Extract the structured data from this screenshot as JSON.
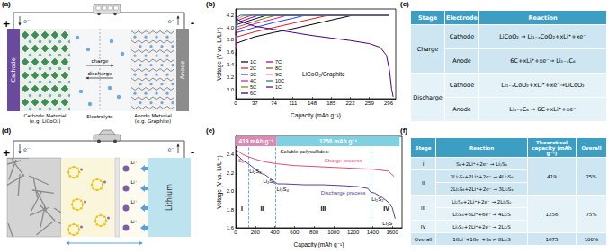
{
  "chart_data": [
    {
      "title": "(b)",
      "type": "line",
      "x_label": "Capacity (mAh g⁻¹)",
      "y_label": "Voltage (V vs. Li/Li⁺)",
      "annotations": [
        "LiCoO₂/Graphite"
      ],
      "xlim": [
        0,
        310
      ],
      "xticks": [
        0,
        37,
        74,
        111,
        148,
        185,
        222,
        259,
        296
      ],
      "ylim": [
        2.85,
        4.3
      ],
      "yticks": [
        {
          "value": 3,
          "label": "3.0"
        },
        3.2,
        3.4,
        3.6,
        3.8,
        {
          "value": 4,
          "label": "4.0"
        },
        4.2
      ],
      "grid": false,
      "legend": "lower left",
      "series": [
        {
          "name": "1C",
          "color": "#000000",
          "x": [
            0,
            3,
            37,
            74,
            111,
            148,
            185,
            222,
            235,
            296
          ],
          "values": [
            3.55,
            3.75,
            3.85,
            3.92,
            3.98,
            4.05,
            4.12,
            4.19,
            4.2,
            4.2
          ]
        },
        {
          "name": "2C",
          "color": "#e41a1c",
          "x": [
            0,
            3,
            37,
            74,
            111,
            148,
            180,
            296
          ],
          "values": [
            3.65,
            3.85,
            3.93,
            4.0,
            4.07,
            4.14,
            4.2,
            4.2
          ]
        },
        {
          "name": "3C",
          "color": "#1f3fff",
          "x": [
            0,
            3,
            37,
            74,
            111,
            135,
            296
          ],
          "values": [
            3.72,
            3.92,
            4.0,
            4.08,
            4.15,
            4.2,
            4.2
          ]
        },
        {
          "name": "4C",
          "color": "#d02090",
          "x": [
            0,
            3,
            37,
            74,
            100,
            296
          ],
          "values": [
            3.78,
            3.97,
            4.06,
            4.14,
            4.2,
            4.2
          ]
        },
        {
          "name": "5C",
          "color": "#808000",
          "x": [
            0,
            3,
            37,
            60,
            80,
            296
          ],
          "values": [
            3.83,
            4.01,
            4.1,
            4.16,
            4.2,
            4.2
          ]
        },
        {
          "name": "6C",
          "color": "#000080",
          "x": [
            0,
            3,
            37,
            60,
            296
          ],
          "values": [
            3.87,
            4.05,
            4.14,
            4.2,
            4.2
          ]
        },
        {
          "name": "7C",
          "color": "#8b008b",
          "x": [
            0,
            3,
            30,
            45,
            296
          ],
          "values": [
            3.9,
            4.08,
            4.16,
            4.2,
            4.2
          ]
        },
        {
          "name": "8C",
          "color": "#8b4513",
          "x": [
            0,
            3,
            20,
            32,
            296
          ],
          "values": [
            3.93,
            4.11,
            4.17,
            4.2,
            4.2
          ]
        },
        {
          "name": "9C",
          "color": "#ff69b4",
          "x": [
            0,
            3,
            15,
            22,
            296
          ],
          "values": [
            3.95,
            4.14,
            4.19,
            4.2,
            4.2
          ]
        },
        {
          "name": "10C",
          "color": "#008080",
          "x": [
            0,
            3,
            10,
            296
          ],
          "values": [
            3.97,
            4.17,
            4.2,
            4.2
          ]
        },
        {
          "name": "1C",
          "color": "#4b0082",
          "x": [
            0,
            10,
            37,
            74,
            111,
            148,
            185,
            222,
            259,
            280,
            292,
            298,
            302,
            305
          ],
          "values": [
            4.15,
            4.1,
            4.02,
            3.97,
            3.92,
            3.87,
            3.83,
            3.79,
            3.74,
            3.68,
            3.55,
            3.3,
            3.0,
            2.88
          ]
        }
      ]
    },
    {
      "title": "(e)",
      "type": "line",
      "x_label": "Capacity (mAh g⁻¹)",
      "y_label": "Voltage (V vs. Li/Li⁺)",
      "annotations": [
        "Soluble polysulfides:"
      ],
      "xlim": [
        0,
        1700
      ],
      "xticks": [
        0,
        200,
        400,
        600,
        800,
        1000,
        1200,
        1400,
        1600
      ],
      "ylim": [
        1.6,
        2.6
      ],
      "yticks": [
        1.6,
        1.8,
        {
          "value": 2,
          "label": "2.0"
        },
        2.2,
        2.4
      ],
      "grid": false,
      "capacity_bands": [
        {
          "from": 0,
          "to": 419,
          "label": "419 mAh g⁻¹",
          "color": "#d98cb3"
        },
        {
          "from": 419,
          "to": 1675,
          "label": "1256 mAh g⁻¹",
          "color": "#7fd0e0"
        }
      ],
      "stage_boundaries": [
        130,
        410,
        1380
      ],
      "stages": [
        "I",
        "II",
        "III",
        "IV"
      ],
      "species": [
        "S₈",
        "Li₂S₈",
        "Li₂S₆",
        "Li₂S₄",
        "Li₂S₂",
        "Li₂S"
      ],
      "series": [
        {
          "name": "Discharge process",
          "color": "#5e3c99",
          "x": [
            0,
            30,
            80,
            130,
            200,
            270,
            300,
            400,
            430,
            500,
            700,
            900,
            1100,
            1250,
            1350,
            1380,
            1420,
            1500,
            1560,
            1600,
            1630
          ],
          "values": [
            2.42,
            2.38,
            2.33,
            2.3,
            2.24,
            2.19,
            2.18,
            2.1,
            2.08,
            2.08,
            2.07,
            2.07,
            2.06,
            2.05,
            2.03,
            1.99,
            1.98,
            1.93,
            1.88,
            1.82,
            1.7
          ]
        },
        {
          "name": "Charge process",
          "color": "#e5487f",
          "x": [
            1620,
            1560,
            1400,
            1200,
            1000,
            800,
            600,
            420,
            300,
            200,
            120,
            60,
            20,
            0
          ],
          "values": [
            2.16,
            2.22,
            2.24,
            2.25,
            2.26,
            2.27,
            2.28,
            2.3,
            2.32,
            2.35,
            2.38,
            2.41,
            2.44,
            2.47
          ]
        }
      ]
    }
  ],
  "diagrams": [
    {
      "title": "(a)",
      "labels": {
        "positive": "+",
        "negative": "-",
        "electron": "e⁻",
        "cathode": "Cathode",
        "anode": "Anode",
        "charge": "charge",
        "discharge": "discharge",
        "cathode_material": [
          "Cathode Material",
          "(e.g. LiCoO₂)"
        ],
        "electrolyte": "Electrolyte",
        "anode_material": [
          "Anode Material",
          "(e.g. Graphite)"
        ]
      }
    },
    {
      "title": "(d)",
      "labels": {
        "positive": "+",
        "negative": "-",
        "electron": "e⁻",
        "ion": "Li⁺",
        "anode": "Lithium"
      }
    }
  ],
  "tables": [
    {
      "title": "(c)",
      "header": [
        "Stage",
        "Electrode",
        "Reaction"
      ],
      "groups": [
        {
          "stage": "Charge",
          "rows": [
            [
              "Cathode",
              "LiCoO₂ → Li₁₋ₓCoO₂+xLi⁺+xe⁻"
            ],
            [
              "Anode",
              "6C+xLi⁺+xe⁻→ Li₁₋ₓC₆"
            ]
          ]
        },
        {
          "stage": "Discharge",
          "rows": [
            [
              "Cathode",
              "Li₁₋ₓCoO₂+xLi⁺+xe⁻→LiCoO₂"
            ],
            [
              "Anode",
              "Li₁₋ₓC₆ → 6C+xLi⁺+xe⁻"
            ]
          ]
        }
      ]
    },
    {
      "title": "(f)",
      "header": [
        "Stage",
        "Reaction",
        "Theoretical capacity (mAh g⁻¹)",
        "Overall"
      ],
      "groups": [
        {
          "stages": [
            {
              "stage": "I",
              "reactions": [
                "S₈+2Li⁺+2e⁻ → Li₂S₈"
              ]
            },
            {
              "stage": "II",
              "reactions": [
                "3Li₂S₈+2Li⁺+2e⁻ → 4Li₂S₆",
                "2Li₂S₆+2Li⁺+2e⁻ → 3Li₂S₄"
              ]
            }
          ],
          "capacity": 419,
          "overall": "25%"
        },
        {
          "stages": [
            {
              "stage": "III",
              "reactions": [
                "Li₂S₄+2Li⁺+2e⁻ → 2Li₂S₂",
                "Li₂S₄+6Li⁺+6e⁻ → 4Li₂S"
              ]
            },
            {
              "stage": "IV",
              "reactions": [
                "Li₂S₂+2Li⁺+2e⁻ → 2Li₂S"
              ]
            }
          ],
          "capacity": 1256,
          "overall": "75%"
        },
        {
          "stages": [
            {
              "stage": "Overall",
              "reactions": [
                "16Li⁺+16e⁻+S₈ ⇌ 8Li₂S"
              ]
            }
          ],
          "capacity": 1675,
          "overall": "100%"
        }
      ]
    }
  ]
}
